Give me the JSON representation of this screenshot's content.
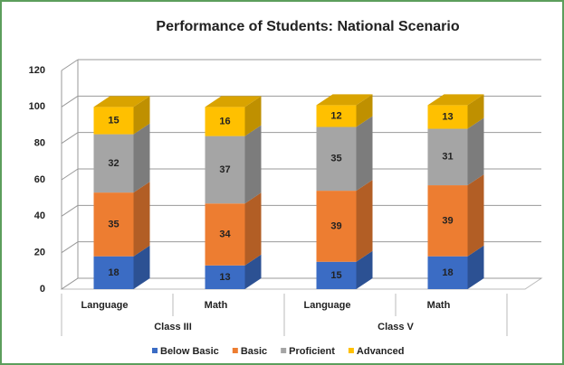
{
  "chart_data": {
    "type": "stacked_bar_3d",
    "title": "Performance of Students: National Scenario",
    "categories": [
      "Language",
      "Math",
      "Language",
      "Math"
    ],
    "groups": [
      "Class III",
      "Class V"
    ],
    "series": [
      {
        "name": "Below Basic",
        "color": "#3b6cc4",
        "values": [
          18,
          13,
          15,
          18
        ]
      },
      {
        "name": "Basic",
        "color": "#ed7d31",
        "values": [
          35,
          34,
          39,
          39
        ]
      },
      {
        "name": "Proficient",
        "color": "#a5a5a5",
        "values": [
          32,
          37,
          35,
          31
        ]
      },
      {
        "name": "Advanced",
        "color": "#ffc000",
        "values": [
          15,
          16,
          12,
          13
        ]
      }
    ],
    "ylim": [
      0,
      120
    ],
    "yticks": [
      0,
      20,
      40,
      60,
      80,
      100,
      120
    ],
    "grid": true,
    "legend": "bottom"
  }
}
